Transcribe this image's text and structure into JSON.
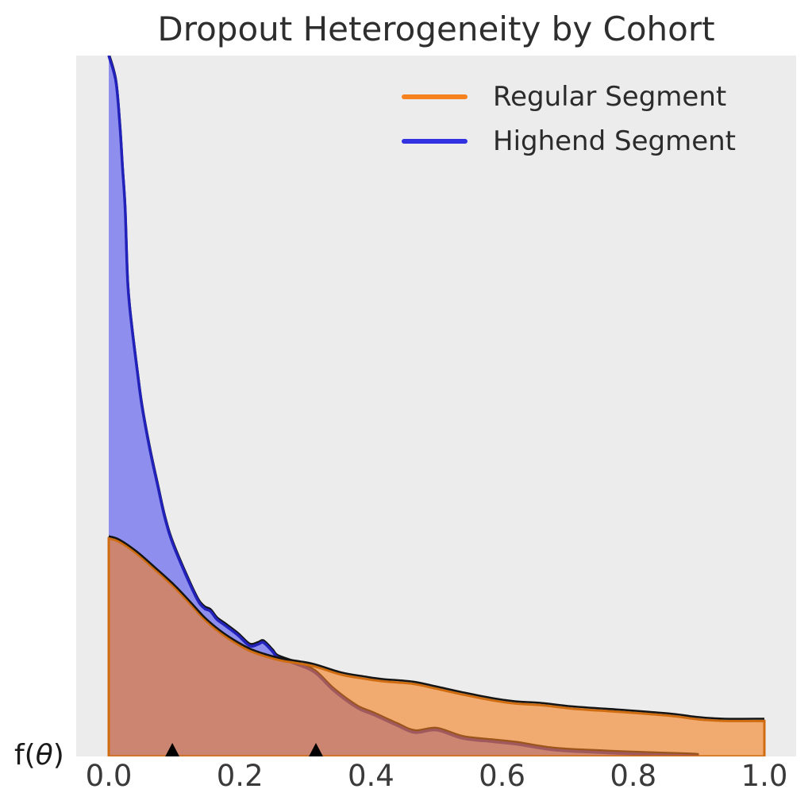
{
  "title": "Dropout Heterogeneity by Cohort",
  "legend": {
    "items": [
      {
        "label": "Regular Segment",
        "color": "#f5821e"
      },
      {
        "label": "Highend Segment",
        "color": "#3232e0"
      }
    ]
  },
  "axes": {
    "x_ticks": [
      "0.0",
      "0.2",
      "0.4",
      "0.6",
      "0.8",
      "1.0"
    ],
    "y_label_prefix": "f(",
    "y_label_theta": "θ",
    "y_label_suffix": ")"
  },
  "colors": {
    "page_background": "#ffffff",
    "plot_background": "#ececec",
    "title_text": "#2e2e2e",
    "tick_text": "#3a3a3a",
    "legend_text": "#2b2b2b",
    "curve_outline_black": "#141414",
    "marker_black": "#000000"
  },
  "chart_data": {
    "type": "area",
    "subtype": "kde-density",
    "title": "Dropout Heterogeneity by Cohort",
    "xlabel": "",
    "ylabel": "f(θ)",
    "xlim": [
      -0.05,
      1.05
    ],
    "ylim": [
      0,
      8.5
    ],
    "grid": false,
    "legend_position": "upper right",
    "note": "Highend Segment density peak is clipped at the top of the axes",
    "series": [
      {
        "name": "Highend Segment",
        "line_color": "#2222bb",
        "legend_color": "#3232e0",
        "fill_color": "rgba(47,47,239,0.5)",
        "clipped_at_top": true,
        "points": [
          [
            0.0,
            8.49
          ],
          [
            0.011,
            8.17
          ],
          [
            0.017,
            7.65
          ],
          [
            0.021,
            7.14
          ],
          [
            0.025,
            6.63
          ],
          [
            0.029,
            5.73
          ],
          [
            0.035,
            5.22
          ],
          [
            0.044,
            4.64
          ],
          [
            0.051,
            4.23
          ],
          [
            0.063,
            3.71
          ],
          [
            0.075,
            3.27
          ],
          [
            0.086,
            2.88
          ],
          [
            0.1,
            2.53
          ],
          [
            0.132,
            1.95
          ],
          [
            0.145,
            1.8
          ],
          [
            0.155,
            1.76
          ],
          [
            0.165,
            1.66
          ],
          [
            0.177,
            1.59
          ],
          [
            0.197,
            1.47
          ],
          [
            0.215,
            1.34
          ],
          [
            0.228,
            1.36
          ],
          [
            0.236,
            1.38
          ],
          [
            0.25,
            1.27
          ],
          [
            0.258,
            1.2
          ],
          [
            0.286,
            1.12
          ],
          [
            0.314,
            1.02
          ],
          [
            0.343,
            0.8
          ],
          [
            0.379,
            0.59
          ],
          [
            0.403,
            0.51
          ],
          [
            0.439,
            0.38
          ],
          [
            0.467,
            0.29
          ],
          [
            0.5,
            0.32
          ],
          [
            0.54,
            0.22
          ],
          [
            0.585,
            0.18
          ],
          [
            0.621,
            0.15
          ],
          [
            0.678,
            0.08
          ],
          [
            0.742,
            0.05
          ],
          [
            0.803,
            0.03
          ],
          [
            0.884,
            0.01
          ],
          [
            0.9,
            0.0
          ]
        ]
      },
      {
        "name": "Regular Segment",
        "line_color": "#d06c10",
        "legend_color": "#f5821e",
        "fill_color": "rgba(245,126,30,0.6)",
        "clipped_at_top": false,
        "points": [
          [
            0.0,
            2.64
          ],
          [
            0.016,
            2.6
          ],
          [
            0.042,
            2.46
          ],
          [
            0.071,
            2.26
          ],
          [
            0.1,
            2.05
          ],
          [
            0.125,
            1.84
          ],
          [
            0.146,
            1.66
          ],
          [
            0.168,
            1.51
          ],
          [
            0.192,
            1.38
          ],
          [
            0.215,
            1.28
          ],
          [
            0.24,
            1.21
          ],
          [
            0.264,
            1.16
          ],
          [
            0.288,
            1.13
          ],
          [
            0.314,
            1.09
          ],
          [
            0.355,
            0.99
          ],
          [
            0.391,
            0.94
          ],
          [
            0.419,
            0.91
          ],
          [
            0.464,
            0.88
          ],
          [
            0.5,
            0.82
          ],
          [
            0.54,
            0.75
          ],
          [
            0.585,
            0.68
          ],
          [
            0.621,
            0.64
          ],
          [
            0.661,
            0.62
          ],
          [
            0.706,
            0.58
          ],
          [
            0.778,
            0.54
          ],
          [
            0.859,
            0.49
          ],
          [
            0.899,
            0.45
          ],
          [
            0.939,
            0.43
          ],
          [
            1.0,
            0.43
          ]
        ]
      }
    ],
    "markers": {
      "shape": "triangle-up",
      "color": "#000000",
      "x": [
        0.097,
        0.316
      ],
      "y": 0
    }
  }
}
